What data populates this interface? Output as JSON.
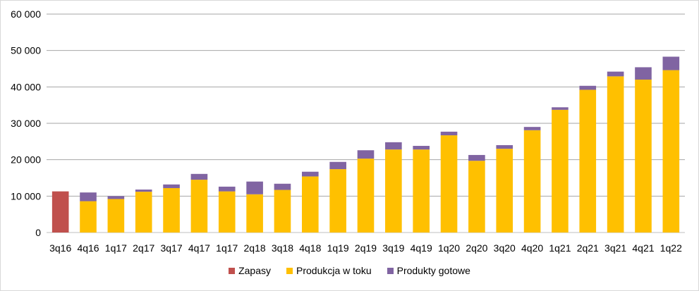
{
  "chart_data": {
    "type": "bar",
    "stacked": true,
    "title": "",
    "xlabel": "",
    "ylabel": "",
    "ylim": [
      0,
      60000
    ],
    "yticks": [
      0,
      10000,
      20000,
      30000,
      40000,
      50000,
      60000
    ],
    "ytick_labels": [
      "0",
      "10 000",
      "20 000",
      "30 000",
      "40 000",
      "50 000",
      "60 000"
    ],
    "grid": true,
    "legend_position": "bottom",
    "categories": [
      "3q16",
      "4q16",
      "1q17",
      "2q17",
      "3q17",
      "4q17",
      "1q17",
      "2q18",
      "3q18",
      "4q18",
      "1q19",
      "2q19",
      "3q19",
      "4q19",
      "1q20",
      "2q20",
      "3q20",
      "4q20",
      "1q21",
      "2q21",
      "3q21",
      "4q21",
      "1q22"
    ],
    "series": [
      {
        "name": "Zapasy",
        "color": "#c0504d",
        "values": [
          11300,
          0,
          0,
          0,
          0,
          0,
          0,
          0,
          0,
          0,
          0,
          0,
          0,
          0,
          0,
          0,
          0,
          0,
          0,
          0,
          0,
          0,
          0
        ]
      },
      {
        "name": "Produkcja w toku",
        "color": "#ffc000",
        "values": [
          0,
          8600,
          9200,
          11200,
          12200,
          14500,
          11300,
          10500,
          11700,
          15400,
          17400,
          20300,
          22800,
          22800,
          26700,
          19700,
          23000,
          28100,
          33700,
          39200,
          42900,
          42000,
          44600
        ]
      },
      {
        "name": "Produkty gotowe",
        "color": "#8064a2",
        "values": [
          0,
          2400,
          800,
          600,
          1000,
          1600,
          1300,
          3500,
          1700,
          1300,
          2000,
          2300,
          2000,
          1000,
          1000,
          1600,
          1000,
          900,
          700,
          1100,
          1300,
          3400,
          3700
        ]
      }
    ]
  }
}
